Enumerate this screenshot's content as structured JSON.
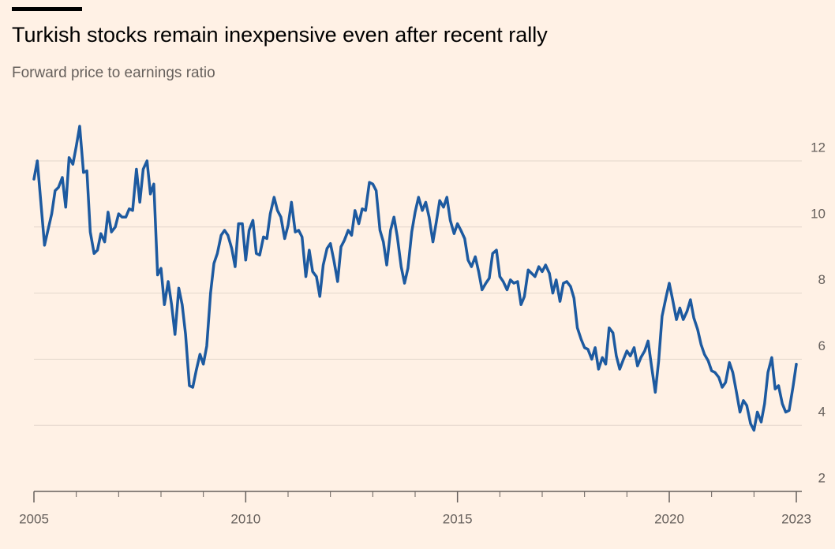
{
  "chart_data": {
    "type": "line",
    "title": "Turkish stocks remain inexpensive even after recent rally",
    "subtitle": "Forward price to earnings ratio",
    "color": "#1d5aa0",
    "x": [
      2005,
      2005.08,
      2005.17,
      2005.25,
      2005.33,
      2005.42,
      2005.5,
      2005.58,
      2005.67,
      2005.75,
      2005.83,
      2005.92,
      2006,
      2006.08,
      2006.17,
      2006.25,
      2006.33,
      2006.42,
      2006.5,
      2006.58,
      2006.67,
      2006.75,
      2006.83,
      2006.92,
      2007,
      2007.08,
      2007.17,
      2007.25,
      2007.33,
      2007.42,
      2007.5,
      2007.58,
      2007.67,
      2007.75,
      2007.83,
      2007.92,
      2008,
      2008.08,
      2008.17,
      2008.25,
      2008.33,
      2008.42,
      2008.5,
      2008.58,
      2008.67,
      2008.75,
      2008.83,
      2008.92,
      2009,
      2009.08,
      2009.17,
      2009.25,
      2009.33,
      2009.42,
      2009.5,
      2009.58,
      2009.67,
      2009.75,
      2009.83,
      2009.92,
      2010,
      2010.08,
      2010.17,
      2010.25,
      2010.33,
      2010.42,
      2010.5,
      2010.58,
      2010.67,
      2010.75,
      2010.83,
      2010.92,
      2011,
      2011.08,
      2011.17,
      2011.25,
      2011.33,
      2011.42,
      2011.5,
      2011.58,
      2011.67,
      2011.75,
      2011.83,
      2011.92,
      2012,
      2012.08,
      2012.17,
      2012.25,
      2012.33,
      2012.42,
      2012.5,
      2012.58,
      2012.67,
      2012.75,
      2012.83,
      2012.92,
      2013,
      2013.08,
      2013.17,
      2013.25,
      2013.33,
      2013.42,
      2013.5,
      2013.58,
      2013.67,
      2013.75,
      2013.83,
      2013.92,
      2014,
      2014.08,
      2014.17,
      2014.25,
      2014.33,
      2014.42,
      2014.5,
      2014.58,
      2014.67,
      2014.75,
      2014.83,
      2014.92,
      2015,
      2015.08,
      2015.17,
      2015.25,
      2015.33,
      2015.42,
      2015.5,
      2015.58,
      2015.67,
      2015.75,
      2015.83,
      2015.92,
      2016,
      2016.08,
      2016.17,
      2016.25,
      2016.33,
      2016.42,
      2016.5,
      2016.58,
      2016.67,
      2016.75,
      2016.83,
      2016.92,
      2017,
      2017.08,
      2017.17,
      2017.25,
      2017.33,
      2017.42,
      2017.5,
      2017.58,
      2017.67,
      2017.75,
      2017.83,
      2017.92,
      2018,
      2018.08,
      2018.17,
      2018.25,
      2018.33,
      2018.42,
      2018.5,
      2018.58,
      2018.67,
      2018.75,
      2018.83,
      2018.92,
      2019,
      2019.08,
      2019.17,
      2019.25,
      2019.33,
      2019.42,
      2019.5,
      2019.58,
      2019.67,
      2019.75,
      2019.83,
      2019.92,
      2020,
      2020.08,
      2020.17,
      2020.25,
      2020.33,
      2020.42,
      2020.5,
      2020.58,
      2020.67,
      2020.75,
      2020.83,
      2020.92,
      2021,
      2021.08,
      2021.17,
      2021.25,
      2021.33,
      2021.42,
      2021.5,
      2021.58,
      2021.67,
      2021.75,
      2021.83,
      2021.92,
      2022,
      2022.08,
      2022.17,
      2022.25,
      2022.33,
      2022.42,
      2022.5,
      2022.58,
      2022.67,
      2022.75,
      2022.83,
      2022.92,
      2023
    ],
    "values": [
      11.45,
      12.0,
      10.65,
      9.45,
      9.9,
      10.4,
      11.1,
      11.2,
      11.5,
      10.6,
      12.1,
      11.9,
      12.45,
      13.05,
      11.65,
      11.7,
      9.85,
      9.2,
      9.3,
      9.8,
      9.55,
      10.45,
      9.85,
      10.0,
      10.4,
      10.3,
      10.3,
      10.55,
      10.5,
      11.75,
      10.75,
      11.75,
      12.0,
      11.0,
      11.3,
      8.55,
      8.75,
      7.65,
      8.35,
      7.65,
      6.75,
      8.15,
      7.65,
      6.75,
      5.2,
      5.15,
      5.65,
      6.15,
      5.85,
      6.4,
      8.0,
      8.9,
      9.2,
      9.75,
      9.9,
      9.75,
      9.35,
      8.8,
      10.1,
      10.1,
      9.0,
      9.9,
      10.2,
      9.2,
      9.15,
      9.7,
      9.65,
      10.4,
      10.9,
      10.5,
      10.3,
      9.65,
      10.05,
      10.75,
      9.85,
      9.9,
      9.7,
      8.5,
      9.3,
      8.65,
      8.5,
      7.9,
      8.85,
      9.35,
      9.5,
      9.0,
      8.35,
      9.4,
      9.6,
      9.9,
      9.75,
      10.5,
      10.1,
      10.55,
      10.5,
      11.35,
      11.3,
      11.1,
      9.9,
      9.55,
      8.85,
      9.9,
      10.3,
      9.7,
      8.8,
      8.3,
      8.75,
      9.85,
      10.45,
      10.9,
      10.5,
      10.75,
      10.3,
      9.55,
      10.15,
      10.8,
      10.6,
      10.9,
      10.2,
      9.8,
      10.1,
      9.9,
      9.65,
      9.0,
      8.8,
      9.1,
      8.65,
      8.1,
      8.3,
      8.45,
      9.2,
      9.3,
      8.5,
      8.35,
      8.1,
      8.4,
      8.3,
      8.35,
      7.65,
      7.9,
      8.7,
      8.6,
      8.5,
      8.8,
      8.65,
      8.85,
      8.6,
      8.0,
      8.4,
      7.75,
      8.3,
      8.35,
      8.2,
      7.85,
      6.95,
      6.6,
      6.35,
      6.3,
      6.0,
      6.35,
      5.7,
      6.05,
      5.85,
      6.95,
      6.8,
      6.1,
      5.7,
      6.0,
      6.25,
      6.1,
      6.35,
      5.8,
      6.05,
      6.25,
      6.55,
      5.8,
      5.0,
      5.95,
      7.3,
      7.85,
      8.3,
      7.8,
      7.2,
      7.55,
      7.2,
      7.45,
      7.8,
      7.25,
      6.9,
      6.45,
      6.15,
      5.95,
      5.65,
      5.6,
      5.45,
      5.15,
      5.3,
      5.9,
      5.6,
      5.05,
      4.4,
      4.75,
      4.6,
      4.05,
      3.85,
      4.4,
      4.1,
      4.65,
      5.6,
      6.05,
      5.1,
      5.2,
      4.65,
      4.4,
      4.45,
      5.15,
      5.85
    ],
    "xlim": [
      2005,
      2023
    ],
    "xticks": [
      2005,
      2010,
      2015,
      2020,
      2023
    ],
    "xminorticks": [
      2006,
      2007,
      2008,
      2009,
      2011,
      2012,
      2013,
      2014,
      2016,
      2017,
      2018,
      2019,
      2021,
      2022
    ],
    "ylim": [
      2,
      12
    ],
    "yticks": [
      2,
      4,
      6,
      8,
      10,
      12
    ],
    "grid": true
  }
}
